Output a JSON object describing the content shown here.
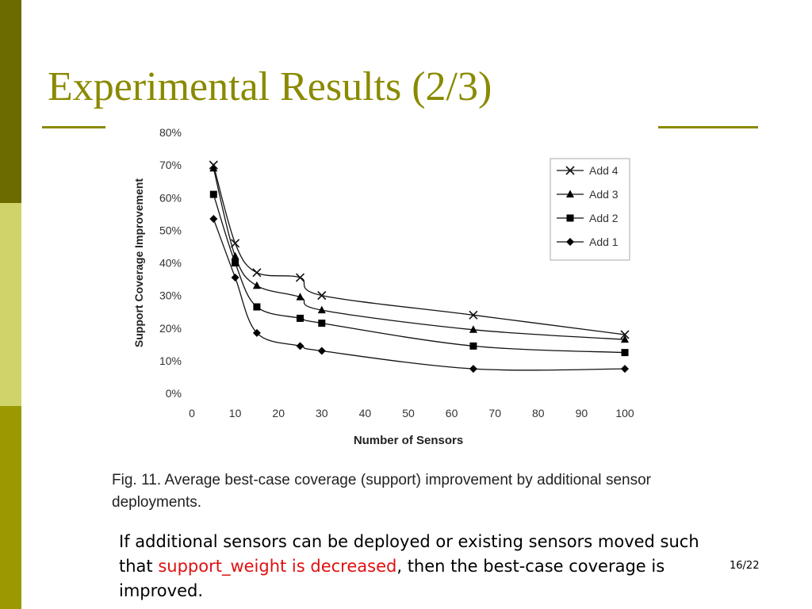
{
  "slide": {
    "title": "Experimental Results (2/3)",
    "page_number": "16/22",
    "caption": "Fig. 11. Average best-case coverage (support) improvement by additional sensor deployments.",
    "body": {
      "part1": "If additional sensors can be deployed or existing sensors moved such that ",
      "highlight": "support_weight is decreased",
      "part2": ", then the best-case coverage is improved."
    },
    "colors": {
      "title": "#8a8a00",
      "sidebar_dark": "#6b6b00",
      "sidebar_light": "#cfd36a",
      "sidebar_mid": "#9a9a00",
      "highlight": "#e01010"
    }
  },
  "chart_data": {
    "type": "line",
    "title": "",
    "xlabel": "Number of Sensors",
    "ylabel": "Support Coverage Improvement",
    "x": [
      5,
      10,
      15,
      25,
      30,
      65,
      100
    ],
    "xlim": [
      0,
      100
    ],
    "ylim": [
      0,
      80
    ],
    "x_ticks": [
      "0",
      "10",
      "20",
      "30",
      "40",
      "50",
      "60",
      "70",
      "80",
      "90",
      "100"
    ],
    "y_ticks": [
      "0%",
      "10%",
      "20%",
      "30%",
      "40%",
      "50%",
      "60%",
      "70%",
      "80%"
    ],
    "grid": false,
    "legend_position": "top-right",
    "series": [
      {
        "name": "Add 4",
        "marker": "x",
        "values": [
          70,
          46,
          37,
          35.5,
          30,
          24,
          18
        ]
      },
      {
        "name": "Add 3",
        "marker": "triangle",
        "values": [
          69,
          42,
          33,
          29.5,
          25.5,
          19.5,
          16.5
        ]
      },
      {
        "name": "Add 2",
        "marker": "square",
        "values": [
          61,
          40,
          26.5,
          23,
          21.5,
          14.5,
          12.5
        ]
      },
      {
        "name": "Add 1",
        "marker": "diamond",
        "values": [
          53.5,
          35.5,
          18.5,
          14.5,
          13,
          7.5,
          7.5
        ]
      }
    ]
  }
}
